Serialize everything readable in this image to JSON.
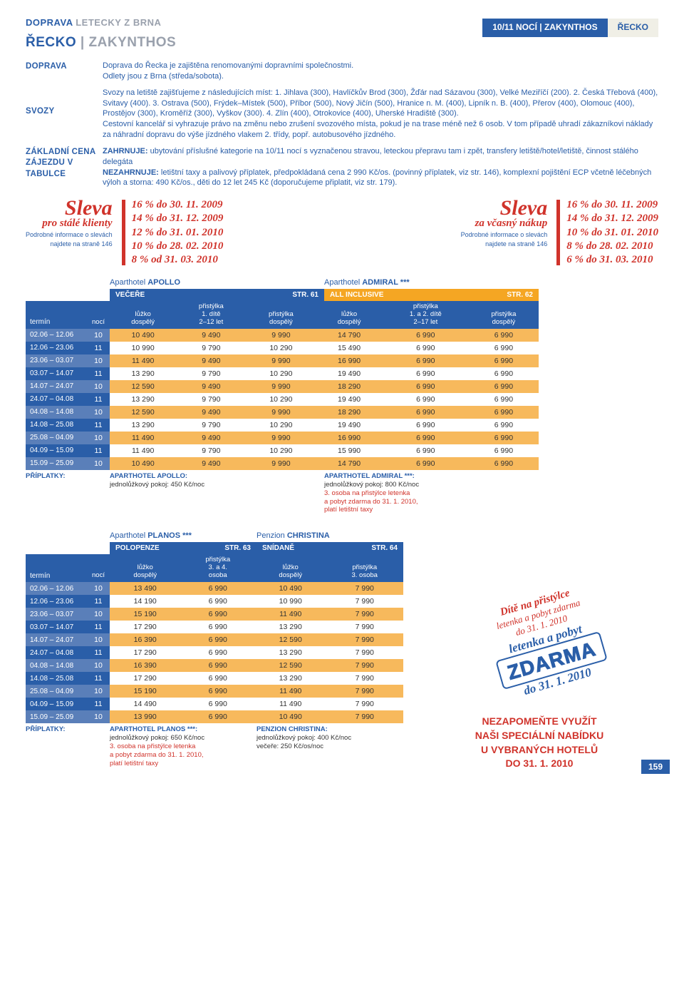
{
  "crumb": {
    "part1": "DOPRAVA",
    "part2": "LETECKY Z BRNA"
  },
  "top_tabs": {
    "left": "10/11 NOCÍ | ZAKYNTHOS",
    "right": "ŘECKO"
  },
  "destination": {
    "country": "ŘECKO",
    "sep": " | ",
    "place": "ZAKYNTHOS"
  },
  "doprava": {
    "label": "DOPRAVA",
    "body": "Doprava do Řecka je zajištěna renomovanými dopravními společnostmi.\nOdlety jsou z Brna (středa/sobota)."
  },
  "svozy": {
    "label": "SVOZY",
    "body": "Svozy na letiště zajišťujeme z následujících míst: 1. Jihlava (300), Havlíčkův Brod (300), Žďár nad Sázavou (300), Velké Meziříčí (200). 2. Česká Třebová (400), Svitavy (400). 3. Ostrava (500), Frýdek–Místek (500), Příbor (500), Nový Jičín (500), Hranice n. M. (400), Lipník n. B. (400), Přerov (400), Olomouc (400), Prostějov (300), Kroměříž (300), Vyškov (300). 4. Zlín (400), Otrokovice (400), Uherské Hradiště (300).\nCestovní kancelář si vyhrazuje právo na změnu nebo zrušení svozového místa, pokud je na trase méně než 6 osob. V tom případě uhradí zákazníkovi náklady za náhradní dopravu do výše jízdného vlakem 2. třídy, popř. autobusového jízdného."
  },
  "cena": {
    "label": "ZÁKLADNÍ CENA ZÁJEZDU V TABULCE",
    "zahrnuje_label": "ZAHRNUJE:",
    "zahrnuje": "ubytování příslušné kategorie na 10/11 nocí s vyznačenou stravou, leteckou přepravu tam i zpět, transfery letiště/hotel/letiště, činnost stálého delegáta",
    "nezahrnuje_label": "NEZAHRNUJE:",
    "nezahrnuje": "letištní taxy a palivový příplatek, předpokládaná cena 2 990 Kč/os. (povinný příplatek, viz str. 146), komplexní pojištění ECP včetně léčebných výloh a storna: 490 Kč/os., děti do 12 let 245 Kč (doporučujeme připlatit, viz str. 179)."
  },
  "sleva_left": {
    "title_big": "Sleva",
    "title_sub": "pro stálé klienty",
    "note1": "Podrobné informace o slevách",
    "note2": "najdete na straně 146",
    "lines": [
      "16 % do 30. 11. 2009",
      "14 % do 31. 12. 2009",
      "12 % do 31. 01. 2010",
      "10 % do 28. 02. 2010",
      "8 % od 31. 03. 2010"
    ]
  },
  "sleva_right": {
    "title_big": "Sleva",
    "title_sub": "za včasný nákup",
    "note1": "Podrobné informace o slevách",
    "note2": "najdete na straně 146",
    "lines": [
      "16 % do 30. 11. 2009",
      "14 % do 31. 12. 2009",
      "10 % do 31. 01. 2010",
      "8 % do 28. 02. 2010",
      "6 % do 31. 03. 2010"
    ]
  },
  "colors": {
    "blue": "#2a5ea8",
    "orange_row": "#f7b95c",
    "red": "#d0332b",
    "header_alt": "#5a7fb9"
  },
  "table1": {
    "hotel_A": {
      "prefix": "Aparthotel",
      "name": "APOLLO",
      "band": "VEČEŘE",
      "page": "STR. 61",
      "cols": [
        "lůžko\ndospělý",
        "přistýlka\n1. dítě\n2–12 let",
        "přistýlka\ndospělý"
      ]
    },
    "hotel_B": {
      "prefix": "Aparthotel",
      "name": "ADMIRAL ***",
      "band": "ALL INCLUSIVE",
      "page": "STR. 62",
      "cols": [
        "lůžko\ndospělý",
        "přistýlka\n1. a 2. dítě\n2–17 let",
        "přistýlka\ndospělý"
      ]
    },
    "term_label": "termín",
    "noc_label": "nocí",
    "rows": [
      {
        "term": "02.06 – 12.06",
        "noc": "10",
        "a": [
          "10 490",
          "9 490",
          "9 990"
        ],
        "b": [
          "14 790",
          "6 990",
          "6 990"
        ]
      },
      {
        "term": "12.06 – 23.06",
        "noc": "11",
        "a": [
          "10 990",
          "9 790",
          "10 290"
        ],
        "b": [
          "15 490",
          "6 990",
          "6 990"
        ]
      },
      {
        "term": "23.06 – 03.07",
        "noc": "10",
        "a": [
          "11 490",
          "9 490",
          "9 990"
        ],
        "b": [
          "16 990",
          "6 990",
          "6 990"
        ]
      },
      {
        "term": "03.07 – 14.07",
        "noc": "11",
        "a": [
          "13 290",
          "9 790",
          "10 290"
        ],
        "b": [
          "19 490",
          "6 990",
          "6 990"
        ]
      },
      {
        "term": "14.07 – 24.07",
        "noc": "10",
        "a": [
          "12 590",
          "9 490",
          "9 990"
        ],
        "b": [
          "18 290",
          "6 990",
          "6 990"
        ]
      },
      {
        "term": "24.07 – 04.08",
        "noc": "11",
        "a": [
          "13 290",
          "9 790",
          "10 290"
        ],
        "b": [
          "19 490",
          "6 990",
          "6 990"
        ]
      },
      {
        "term": "04.08 – 14.08",
        "noc": "10",
        "a": [
          "12 590",
          "9 490",
          "9 990"
        ],
        "b": [
          "18 290",
          "6 990",
          "6 990"
        ]
      },
      {
        "term": "14.08 – 25.08",
        "noc": "11",
        "a": [
          "13 290",
          "9 790",
          "10 290"
        ],
        "b": [
          "19 490",
          "6 990",
          "6 990"
        ]
      },
      {
        "term": "25.08 – 04.09",
        "noc": "10",
        "a": [
          "11 490",
          "9 490",
          "9 990"
        ],
        "b": [
          "16 990",
          "6 990",
          "6 990"
        ]
      },
      {
        "term": "04.09 – 15.09",
        "noc": "11",
        "a": [
          "11 490",
          "9 790",
          "10 290"
        ],
        "b": [
          "15 990",
          "6 990",
          "6 990"
        ]
      },
      {
        "term": "15.09 – 25.09",
        "noc": "10",
        "a": [
          "10 490",
          "9 490",
          "9 990"
        ],
        "b": [
          "14 790",
          "6 990",
          "6 990"
        ]
      }
    ],
    "pripl_label": "PŘÍPLATKY:",
    "pripl_A": {
      "title": "APARTHOTEL APOLLO:",
      "body": "jednolůžkový pokoj: 450 Kč/noc"
    },
    "pripl_B": {
      "title": "APARTHOTEL ADMIRAL ***:",
      "body": "jednolůžkový pokoj: 800 Kč/noc",
      "red": "3. osoba na přistýlce letenka\na pobyt zdarma do 31. 1. 2010,\nplatí letištní taxy"
    }
  },
  "table2": {
    "hotel_A": {
      "prefix": "Aparthotel",
      "name": "PLANOS ***",
      "band": "POLOPENZE",
      "page": "STR. 63",
      "cols": [
        "lůžko\ndospělý",
        "přistýlka\n3. a 4.\nosoba"
      ]
    },
    "hotel_B": {
      "prefix": "Penzion",
      "name": "CHRISTINA",
      "band": "SNÍDANĚ",
      "page": "STR. 64",
      "cols": [
        "lůžko\ndospělý",
        "přistýlka\n3. osoba"
      ]
    },
    "term_label": "termín",
    "noc_label": "nocí",
    "rows": [
      {
        "term": "02.06 – 12.06",
        "noc": "10",
        "a": [
          "13 490",
          "6 990"
        ],
        "b": [
          "10 490",
          "7 990"
        ]
      },
      {
        "term": "12.06 – 23.06",
        "noc": "11",
        "a": [
          "14 190",
          "6 990"
        ],
        "b": [
          "10 990",
          "7 990"
        ]
      },
      {
        "term": "23.06 – 03.07",
        "noc": "10",
        "a": [
          "15 190",
          "6 990"
        ],
        "b": [
          "11 490",
          "7 990"
        ]
      },
      {
        "term": "03.07 – 14.07",
        "noc": "11",
        "a": [
          "17 290",
          "6 990"
        ],
        "b": [
          "13 290",
          "7 990"
        ]
      },
      {
        "term": "14.07 – 24.07",
        "noc": "10",
        "a": [
          "16 390",
          "6 990"
        ],
        "b": [
          "12 590",
          "7 990"
        ]
      },
      {
        "term": "24.07 – 04.08",
        "noc": "11",
        "a": [
          "17 290",
          "6 990"
        ],
        "b": [
          "13 290",
          "7 990"
        ]
      },
      {
        "term": "04.08 – 14.08",
        "noc": "10",
        "a": [
          "16 390",
          "6 990"
        ],
        "b": [
          "12 590",
          "7 990"
        ]
      },
      {
        "term": "14.08 – 25.08",
        "noc": "11",
        "a": [
          "17 290",
          "6 990"
        ],
        "b": [
          "13 290",
          "7 990"
        ]
      },
      {
        "term": "25.08 – 04.09",
        "noc": "10",
        "a": [
          "15 190",
          "6 990"
        ],
        "b": [
          "11 490",
          "7 990"
        ]
      },
      {
        "term": "04.09 – 15.09",
        "noc": "11",
        "a": [
          "14 490",
          "6 990"
        ],
        "b": [
          "11 490",
          "7 990"
        ]
      },
      {
        "term": "15.09 – 25.09",
        "noc": "10",
        "a": [
          "13 990",
          "6 990"
        ],
        "b": [
          "10 490",
          "7 990"
        ]
      }
    ],
    "pripl_label": "PŘÍPLATKY:",
    "pripl_A": {
      "title": "APARTHOTEL PLANOS ***:",
      "body": "jednolůžkový pokoj: 650 Kč/noc",
      "red": "3. osoba na přistýlce letenka\na pobyt zdarma do 31. 1. 2010,\nplatí letištní taxy"
    },
    "pripl_B": {
      "title": "PENZION CHRISTINA:",
      "body": "jednolůžkový pokoj: 400 Kč/noc\nvečeře: 250 Kč/os/noc"
    }
  },
  "stamp": {
    "l1": "Dítě na přistýlce",
    "l2": "letenka a pobyt zdarma",
    "l2b": "do 31. 1. 2010",
    "l3a": "letenka a pobyt",
    "zdarma": "ZDARMA",
    "l4": "do 31. 1. 2010"
  },
  "bottom_offer": {
    "l1": "NEZAPOMEŇTE VYUŽÍT",
    "l2": "NAŠI SPECIÁLNÍ NABÍDKU",
    "l3": "U VYBRANÝCH HOTELŮ",
    "l4": "DO 31. 1. 2010"
  },
  "page_number": "159"
}
